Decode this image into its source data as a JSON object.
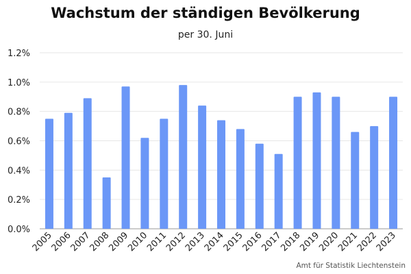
{
  "chart_data": {
    "type": "bar",
    "title": "Wachstum der ständigen Bevölkerung",
    "subtitle": "per 30. Juni",
    "source": "Amt für Statistik Liechtenstein",
    "categories": [
      "2005",
      "2006",
      "2007",
      "2008",
      "2009",
      "2010",
      "2011",
      "2012",
      "2013",
      "2014",
      "2015",
      "2016",
      "2017",
      "2018",
      "2019",
      "2020",
      "2021",
      "2022",
      "2023"
    ],
    "values": [
      0.75,
      0.79,
      0.89,
      0.35,
      0.97,
      0.62,
      0.75,
      0.98,
      0.84,
      0.74,
      0.68,
      0.58,
      0.51,
      0.9,
      0.93,
      0.9,
      0.66,
      0.7,
      0.9
    ],
    "ylim": [
      0,
      1.2
    ],
    "yticks": [
      0,
      0.2,
      0.4,
      0.6,
      0.8,
      1.0,
      1.2
    ],
    "ytick_labels": [
      "0.0%",
      "0.2%",
      "0.4%",
      "0.6%",
      "0.8%",
      "1.0%",
      "1.2%"
    ],
    "grid": true,
    "colors": {
      "bar": "#6b97f7",
      "grid": "#e6e6e6",
      "axis": "#999999"
    }
  }
}
